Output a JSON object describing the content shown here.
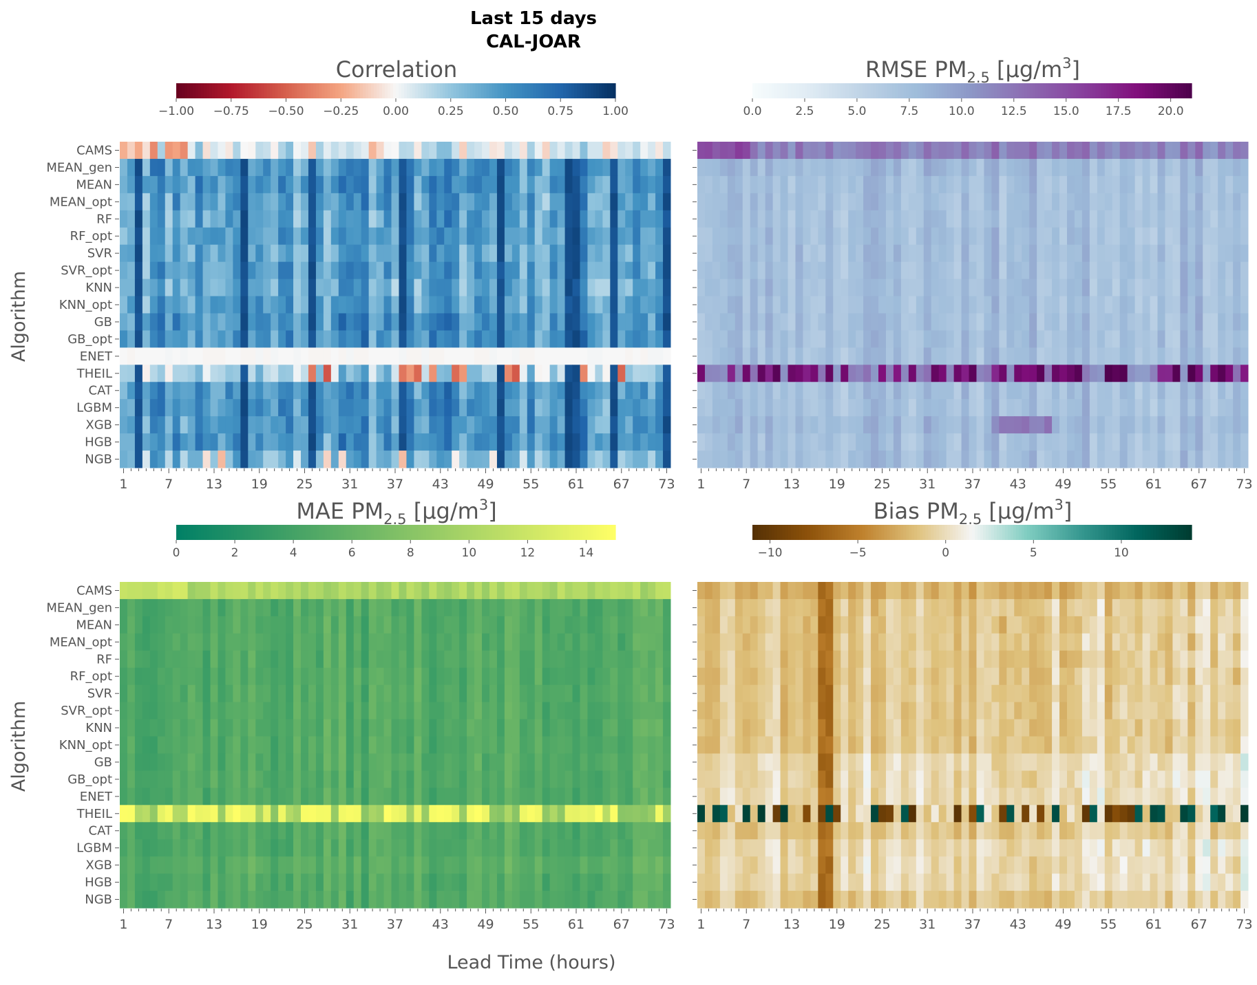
{
  "suptitle": {
    "line1": "Last 15 days",
    "line2": "CAL-JOAR"
  },
  "xlabel": "Lead Time (hours)",
  "ylabel": "Algorithm",
  "algorithms": [
    "CAMS",
    "MEAN_gen",
    "MEAN",
    "MEAN_opt",
    "RF",
    "RF_opt",
    "SVR",
    "SVR_opt",
    "KNN",
    "KNN_opt",
    "GB",
    "GB_opt",
    "ENET",
    "THEIL",
    "CAT",
    "LGBM",
    "XGB",
    "HGB",
    "NGB"
  ],
  "x_ticks": [
    "1",
    "7",
    "13",
    "19",
    "25",
    "31",
    "37",
    "43",
    "49",
    "55",
    "61",
    "67",
    "73"
  ],
  "lead_times": {
    "start": 1,
    "end": 73,
    "step": 1
  },
  "chart_data": [
    {
      "type": "heatmap",
      "id": "corr",
      "title": "Correlation",
      "colormap": "RdBu",
      "vmin": -1.0,
      "vmax": 1.0,
      "colorbar_ticks": [
        "−1.00",
        "−0.75",
        "−0.50",
        "−0.25",
        "0.00",
        "0.25",
        "0.50",
        "0.75",
        "1.00"
      ],
      "colorbar_tick_values": [
        -1.0,
        -0.75,
        -0.5,
        -0.25,
        0.0,
        0.25,
        0.5,
        0.75,
        1.0
      ],
      "row_baselines": [
        -0.1,
        0.5,
        0.5,
        0.45,
        0.45,
        0.45,
        0.4,
        0.45,
        0.4,
        0.45,
        0.5,
        0.5,
        0.0,
        0.2,
        0.5,
        0.5,
        0.5,
        0.5,
        0.35
      ],
      "strong_columns": [
        3,
        17,
        26,
        38,
        51,
        60,
        61,
        66,
        73
      ],
      "negative_columns_theil": [
        26,
        28,
        38,
        39,
        40,
        42,
        45,
        46,
        52,
        53,
        62,
        67
      ],
      "seed": 11
    },
    {
      "type": "heatmap",
      "id": "rmse",
      "title": "RMSE PM",
      "title_sub": "2.5",
      "title_unit": "[μg/m",
      "title_sup": "3",
      "title_close": "]",
      "colormap": "BuPu",
      "vmin": 0.0,
      "vmax": 21.0,
      "colorbar_ticks": [
        "0.0",
        "2.5",
        "5.0",
        "7.5",
        "10.0",
        "12.5",
        "15.0",
        "17.5",
        "20.0"
      ],
      "colorbar_tick_values": [
        0,
        2.5,
        5,
        7.5,
        10,
        12.5,
        15,
        17.5,
        20
      ],
      "row_baselines": [
        12.0,
        8.0,
        7.5,
        7.5,
        7.5,
        7.5,
        7.5,
        7.5,
        7.5,
        7.5,
        7.5,
        7.5,
        7.5,
        17.0,
        7.5,
        7.5,
        8.0,
        7.5,
        7.5
      ],
      "seed": 23
    },
    {
      "type": "heatmap",
      "id": "mae",
      "title": "MAE PM",
      "title_sub": "2.5",
      "title_unit": "[μg/m",
      "title_sup": "3",
      "title_close": "]",
      "colormap": "summer",
      "vmin": 0.0,
      "vmax": 15.0,
      "colorbar_ticks": [
        "0",
        "2",
        "4",
        "6",
        "8",
        "10",
        "12",
        "14"
      ],
      "colorbar_tick_values": [
        0,
        2,
        4,
        6,
        8,
        10,
        12,
        14
      ],
      "row_baselines": [
        9.0,
        5.0,
        5.0,
        5.0,
        5.0,
        5.0,
        5.0,
        5.0,
        5.0,
        5.0,
        5.0,
        5.0,
        5.0,
        11.5,
        5.0,
        5.0,
        5.5,
        5.0,
        5.0
      ],
      "seed": 37
    },
    {
      "type": "heatmap",
      "id": "bias",
      "title": "Bias PM",
      "title_sub": "2.5",
      "title_unit": "[μg/m",
      "title_sup": "3",
      "title_close": "]",
      "colormap": "BrBG",
      "vmin": -11.0,
      "vmax": 14.0,
      "colorbar_ticks": [
        "−10",
        "−5",
        "0",
        "5",
        "10"
      ],
      "colorbar_tick_values": [
        -10,
        -5,
        0,
        5,
        10
      ],
      "row_baselines": [
        -2.0,
        -1.0,
        -1.0,
        -1.0,
        -1.0,
        -1.0,
        -1.0,
        -1.0,
        -1.0,
        -1.0,
        0.0,
        0.0,
        0.0,
        0.0,
        -1.0,
        0.0,
        0.0,
        0.0,
        -1.0
      ],
      "seed": 53
    }
  ]
}
